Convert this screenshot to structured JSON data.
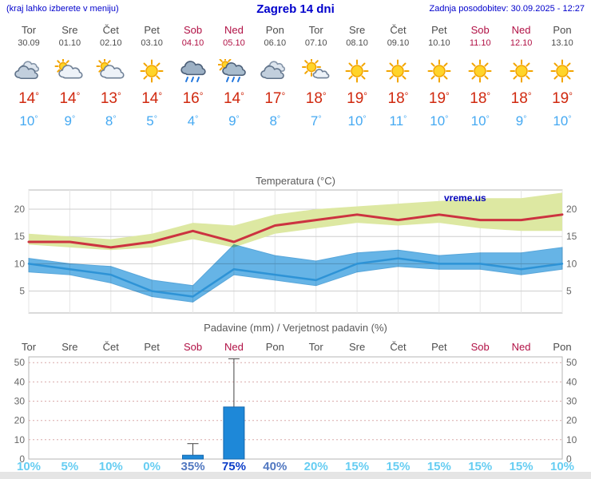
{
  "header": {
    "hint": "(kraj lahko izberete v meniju)",
    "title": "Zagreb 14 dni",
    "updated": "Zadnja posodobitev: 30.09.2025 - 12:27"
  },
  "watermark": "vreme.us",
  "days": [
    {
      "name": "Tor",
      "date": "30.09",
      "weekend": false,
      "icon": "cloudy",
      "tmax": "14°",
      "tmin": "10°"
    },
    {
      "name": "Sre",
      "date": "01.10",
      "weekend": false,
      "icon": "partly-cloudy",
      "tmax": "14°",
      "tmin": "9°"
    },
    {
      "name": "Čet",
      "date": "02.10",
      "weekend": false,
      "icon": "partly-cloudy",
      "tmax": "13°",
      "tmin": "8°"
    },
    {
      "name": "Pet",
      "date": "03.10",
      "weekend": false,
      "icon": "sunny",
      "tmax": "14°",
      "tmin": "5°"
    },
    {
      "name": "Sob",
      "date": "04.10",
      "weekend": true,
      "icon": "rain",
      "tmax": "16°",
      "tmin": "4°"
    },
    {
      "name": "Ned",
      "date": "05.10",
      "weekend": true,
      "icon": "rain-sun",
      "tmax": "14°",
      "tmin": "9°"
    },
    {
      "name": "Pon",
      "date": "06.10",
      "weekend": false,
      "icon": "cloudy",
      "tmax": "17°",
      "tmin": "8°"
    },
    {
      "name": "Tor",
      "date": "07.10",
      "weekend": false,
      "icon": "mostly-sunny",
      "tmax": "18°",
      "tmin": "7°"
    },
    {
      "name": "Sre",
      "date": "08.10",
      "weekend": false,
      "icon": "sunny",
      "tmax": "19°",
      "tmin": "10°"
    },
    {
      "name": "Čet",
      "date": "09.10",
      "weekend": false,
      "icon": "sunny",
      "tmax": "18°",
      "tmin": "11°"
    },
    {
      "name": "Pet",
      "date": "10.10",
      "weekend": false,
      "icon": "sunny",
      "tmax": "19°",
      "tmin": "10°"
    },
    {
      "name": "Sob",
      "date": "11.10",
      "weekend": true,
      "icon": "sunny",
      "tmax": "18°",
      "tmin": "10°"
    },
    {
      "name": "Ned",
      "date": "12.10",
      "weekend": true,
      "icon": "sunny",
      "tmax": "18°",
      "tmin": "9°"
    },
    {
      "name": "Pon",
      "date": "13.10",
      "weekend": false,
      "icon": "sunny",
      "tmax": "19°",
      "tmin": "10°"
    }
  ],
  "chart_data": [
    {
      "type": "line",
      "title": "Temperatura (°C)",
      "x_labels": [
        "Tor",
        "Sre",
        "Čet",
        "Pet",
        "Sob",
        "Ned",
        "Pon",
        "Tor",
        "Sre",
        "Čet",
        "Pet",
        "Sob",
        "Ned",
        "Pon"
      ],
      "ylim": [
        1,
        23.5
      ],
      "yticks": [
        5,
        10,
        15,
        20
      ],
      "grid": true,
      "legend": "none",
      "series": [
        {
          "name": "max-temperature",
          "color": "#cc3340",
          "values": [
            14,
            14,
            13,
            14,
            16,
            14,
            17,
            18,
            19,
            18,
            19,
            18,
            18,
            19
          ]
        },
        {
          "name": "min-temperature",
          "color": "#2e93d6",
          "values": [
            10,
            9,
            8,
            5,
            4,
            9,
            8,
            7,
            10,
            11,
            10,
            10,
            9,
            10
          ]
        }
      ],
      "bands": [
        {
          "name": "max-range",
          "color": "#dde8a2",
          "hi": [
            15.5,
            15,
            14.5,
            15.5,
            17.5,
            17,
            19,
            20,
            20.5,
            21,
            21.5,
            22,
            22,
            23
          ],
          "lo": [
            13.5,
            13,
            12.5,
            13,
            14.5,
            13,
            15.5,
            16.5,
            17.5,
            17,
            17.5,
            16.5,
            16,
            16
          ]
        },
        {
          "name": "min-range",
          "color": "#66b4e6",
          "hi": [
            11,
            10,
            9.5,
            7,
            6,
            13.5,
            11.5,
            10.5,
            12,
            12.5,
            11.5,
            12,
            12,
            13
          ],
          "lo": [
            8.5,
            8,
            6.5,
            4,
            3,
            8,
            7,
            6,
            8.5,
            9.5,
            9,
            9,
            8,
            9
          ]
        }
      ]
    },
    {
      "type": "bar",
      "title": "Padavine (mm) / Verjetnost padavin (%)",
      "categories": [
        "Tor",
        "Sre",
        "Čet",
        "Pet",
        "Sob",
        "Ned",
        "Pon",
        "Tor",
        "Sre",
        "Čet",
        "Pet",
        "Sob",
        "Ned",
        "Pon"
      ],
      "weekend": [
        false,
        false,
        false,
        false,
        true,
        true,
        false,
        false,
        false,
        false,
        false,
        true,
        true,
        false
      ],
      "values_mm": [
        0,
        0,
        0,
        0,
        2,
        27,
        0,
        0,
        0,
        0,
        0,
        0,
        0,
        0
      ],
      "whisker_max_mm": [
        0,
        0,
        0,
        0,
        8,
        52,
        0,
        0,
        0,
        0,
        0,
        0,
        0,
        0
      ],
      "probability_pct": [
        10,
        5,
        10,
        0,
        35,
        75,
        40,
        20,
        15,
        15,
        15,
        15,
        15,
        10
      ],
      "ylim": [
        0,
        53
      ],
      "yticks": [
        0,
        10,
        20,
        30,
        40,
        50
      ],
      "bar_color": "#1e88d8",
      "prob_colors": {
        "low": "#66cdf2",
        "mid": "#5077c0",
        "high": "#0d3ec8"
      }
    }
  ]
}
